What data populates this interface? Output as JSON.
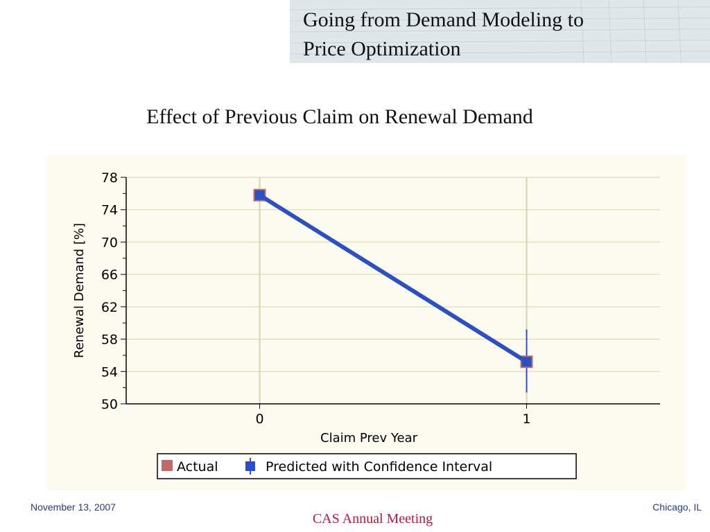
{
  "header": {
    "title_line1": "Going from Demand Modeling to",
    "title_line2": "Price Optimization"
  },
  "slide_subtitle": "Effect of Previous Claim on Renewal Demand",
  "chart_data": {
    "type": "line",
    "categories": [
      "0",
      "1"
    ],
    "x": [
      0,
      1
    ],
    "series": [
      {
        "name": "Actual",
        "marker": "square",
        "color": "#c26a6a",
        "values": [
          75.8,
          55.2
        ]
      },
      {
        "name": "Predicted with Confidence Interval",
        "marker": "diamond",
        "color": "#2d4fc4",
        "values": [
          75.8,
          55.2
        ],
        "ci_lower": [
          75.2,
          51.4
        ],
        "ci_upper": [
          76.4,
          59.2
        ]
      }
    ],
    "xlabel": "Claim Prev Year",
    "ylabel": "Renewal Demand [%]",
    "ylim": [
      50,
      78
    ],
    "yticks": [
      50,
      54,
      58,
      62,
      66,
      70,
      74,
      78
    ],
    "grid": true,
    "legend": "bottom"
  },
  "footer": {
    "date": "November 13, 2007",
    "location": "Chicago, IL",
    "meeting": "CAS Annual Meeting"
  },
  "colors": {
    "header_bg": "#dfe7ea",
    "chart_bg": "#fbfbf0",
    "footer_text": "#1f3b8a",
    "meeting_text": "#c0143c"
  }
}
